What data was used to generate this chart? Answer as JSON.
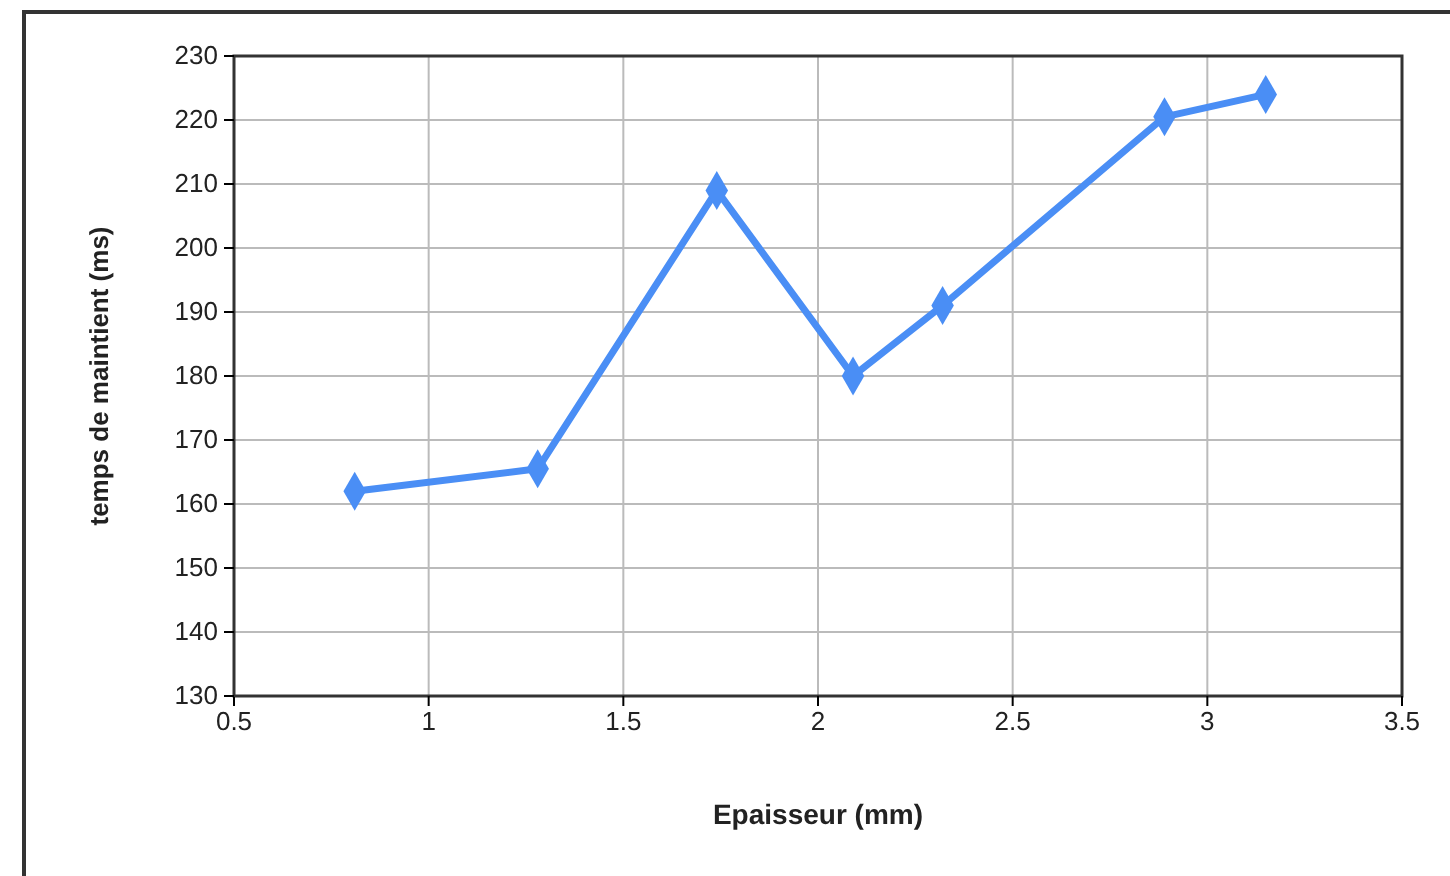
{
  "chart_data": {
    "type": "line",
    "xlabel": "Epaisseur (mm)",
    "ylabel": "temps de maintient (ms)",
    "x": [
      0.81,
      1.28,
      1.74,
      2.09,
      2.32,
      2.89,
      3.15
    ],
    "series": [
      {
        "color": "#4a8ef5",
        "values": [
          162,
          165.5,
          209,
          180,
          191,
          220.5,
          224
        ]
      }
    ],
    "xlim": [
      0.5,
      3.5
    ],
    "xticks": [
      0.5,
      1,
      1.5,
      2,
      2.5,
      3,
      3.5
    ],
    "ylim": [
      130,
      230
    ],
    "yticks": [
      130,
      140,
      150,
      160,
      170,
      180,
      190,
      200,
      210,
      220,
      230
    ],
    "grid": true,
    "marker": "diamond",
    "line_style": "solid"
  }
}
